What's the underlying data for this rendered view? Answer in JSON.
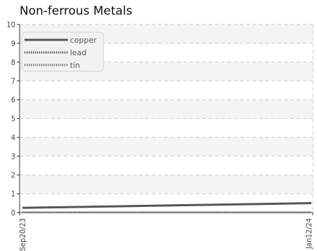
{
  "chart_data": {
    "type": "line",
    "title": "Non-ferrous Metals",
    "xlabel": "",
    "ylabel": "",
    "x_tick_labels": [
      "Sep20/23",
      "Jan12/24"
    ],
    "ylim": [
      0,
      10
    ],
    "y_ticks": [
      0,
      1,
      2,
      3,
      4,
      5,
      6,
      7,
      8,
      9,
      10
    ],
    "grid": true,
    "legend_position": "top-left",
    "series": [
      {
        "name": "copper",
        "color": "#555555",
        "style": "solid",
        "start": 0.25,
        "end": 0.5
      },
      {
        "name": "lead",
        "color": "#555555",
        "style": "dotted",
        "start": 0.02,
        "end": 0.02
      },
      {
        "name": "tin",
        "color": "#777777",
        "style": "dotted",
        "start": 0.0,
        "end": 0.0
      }
    ]
  }
}
